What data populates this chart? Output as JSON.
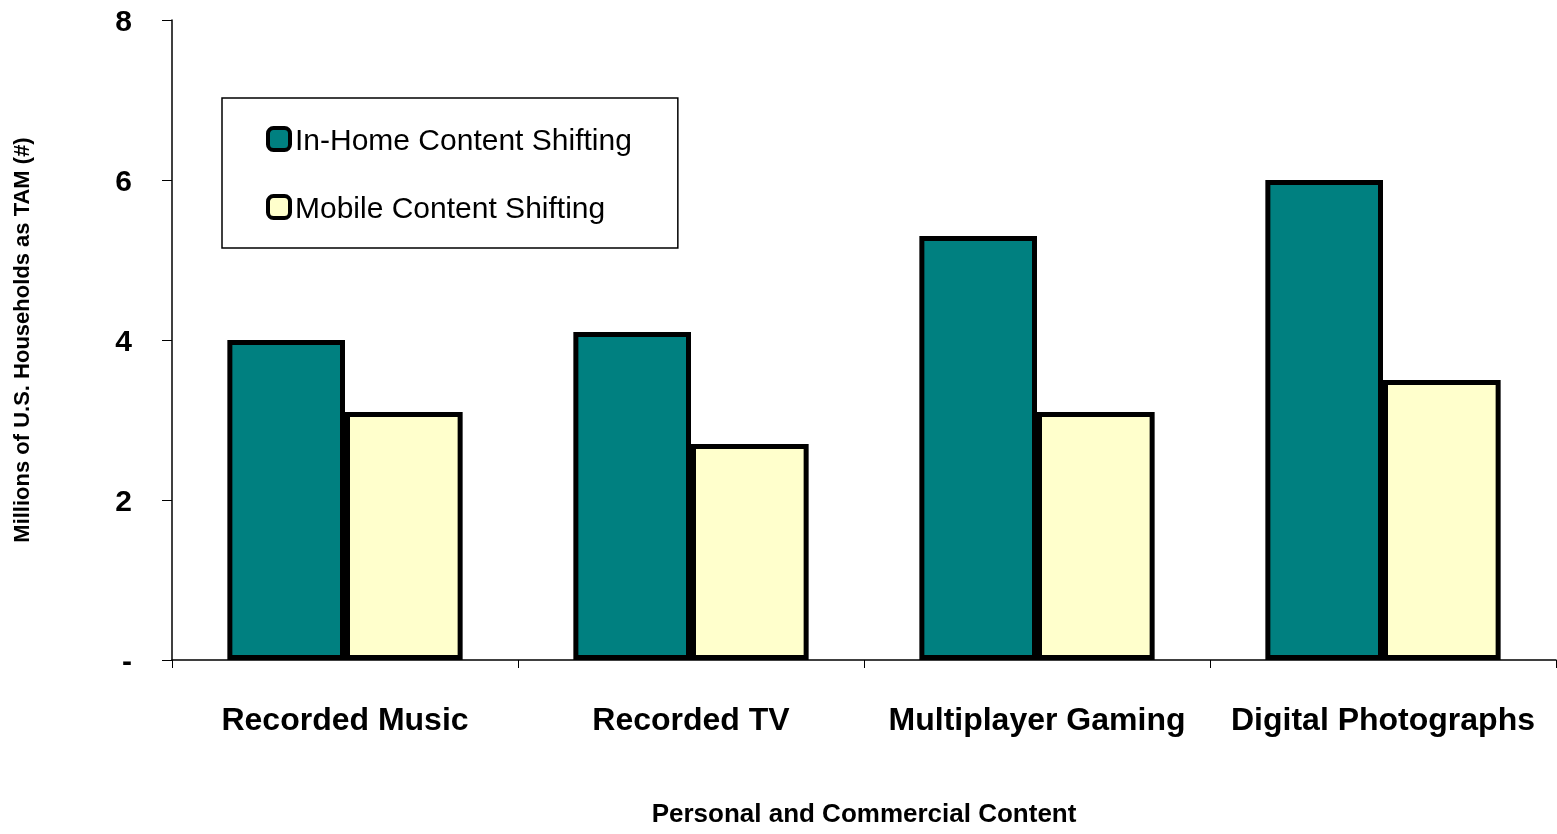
{
  "chart_data": {
    "type": "bar",
    "xlabel": "Personal and Commercial Content",
    "ylabel": "Millions of U.S. Households as TAM (#)",
    "categories": [
      "Recorded Music",
      "Recorded TV",
      "Multiplayer Gaming",
      "Digital Photographs"
    ],
    "series": [
      {
        "name": "In-Home Content Shifting",
        "color": "#008080",
        "values": [
          4.0,
          4.1,
          5.3,
          6.0
        ]
      },
      {
        "name": "Mobile Content Shifting",
        "color": "#ffffcc",
        "values": [
          3.1,
          2.7,
          3.1,
          3.5
        ]
      }
    ],
    "ylim": [
      0,
      8
    ],
    "yticks": [
      {
        "value": 0,
        "label": "-"
      },
      2,
      4,
      6,
      8
    ],
    "grid": false,
    "legend": "top left"
  }
}
